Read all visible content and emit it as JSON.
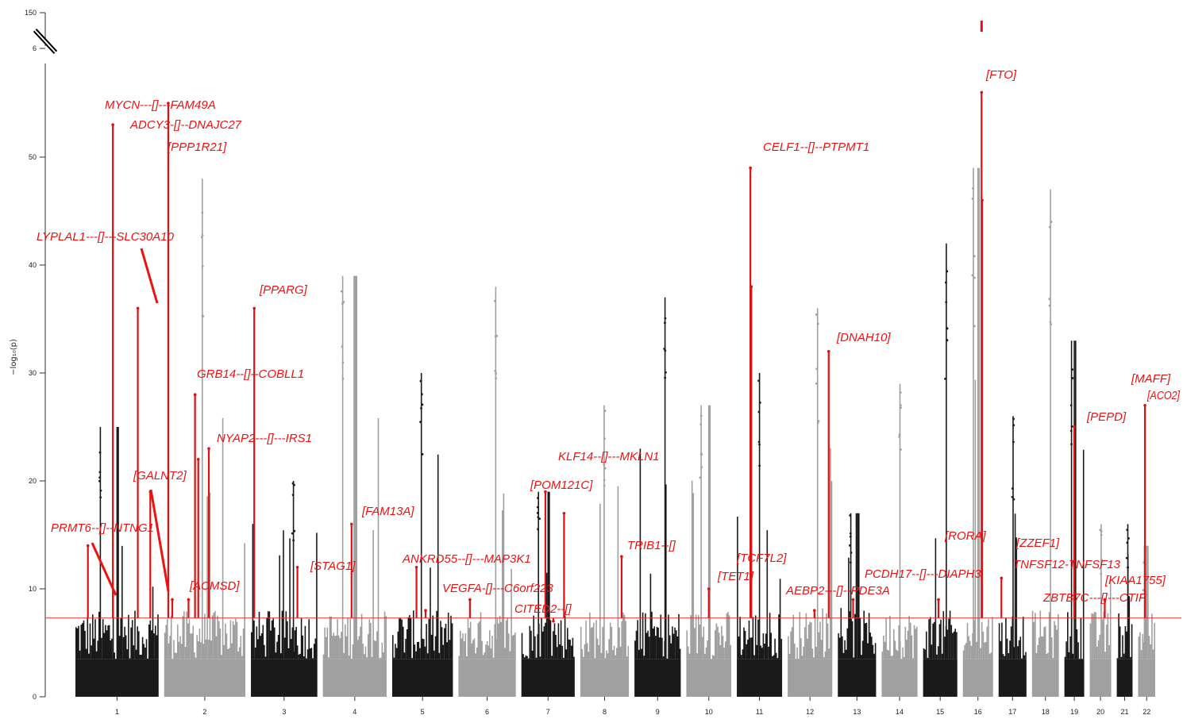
{
  "chart_data": {
    "type": "scatter",
    "title": "",
    "xlabel": "",
    "ylabel": "−log₁₀(p)",
    "ylim": [
      0,
      58
    ],
    "yticks": [
      0,
      10,
      20,
      30,
      40,
      50
    ],
    "ybreak_ticks": [
      "6",
      "150"
    ],
    "significance_threshold": 7.3,
    "colors": {
      "odd": "#1a1a1a",
      "even": "#a0a0a0",
      "highlight": "#dd1111",
      "threshold": "#e03030"
    },
    "chromosomes": [
      {
        "label": "1",
        "peak": 25,
        "highlights": [
          {
            "max": 53,
            "start": 0.45
          },
          {
            "max": 36,
            "start": 0.75
          },
          {
            "max": 14,
            "start": 0.15
          },
          {
            "max": 19,
            "start": 0.9
          }
        ]
      },
      {
        "label": "2",
        "peak": 48,
        "highlights": [
          {
            "max": 55,
            "start": 0.05
          },
          {
            "max": 28,
            "start": 0.38
          },
          {
            "max": 9,
            "start": 0.3
          },
          {
            "max": 22,
            "start": 0.42
          },
          {
            "max": 23,
            "start": 0.55
          },
          {
            "max": 9,
            "start": 0.1
          }
        ]
      },
      {
        "label": "3",
        "peak": 20,
        "highlights": [
          {
            "max": 36,
            "start": 0.05
          },
          {
            "max": 12,
            "start": 0.7
          }
        ]
      },
      {
        "label": "4",
        "peak": 39,
        "highlights": [
          {
            "max": 16,
            "start": 0.45
          }
        ]
      },
      {
        "label": "5",
        "peak": 30,
        "highlights": [
          {
            "max": 12,
            "start": 0.4
          },
          {
            "max": 8,
            "start": 0.55
          }
        ]
      },
      {
        "label": "6",
        "peak": 38,
        "highlights": [
          {
            "max": 9,
            "start": 0.2
          }
        ]
      },
      {
        "label": "7",
        "peak": 19,
        "highlights": [
          {
            "max": 19,
            "start": 0.45
          },
          {
            "max": 17,
            "start": 0.8
          },
          {
            "max": 7,
            "start": 0.6
          }
        ]
      },
      {
        "label": "8",
        "peak": 27,
        "highlights": [
          {
            "max": 13,
            "start": 0.85
          }
        ]
      },
      {
        "label": "9",
        "peak": 37,
        "highlights": []
      },
      {
        "label": "10",
        "peak": 27,
        "highlights": [
          {
            "max": 10,
            "start": 0.5
          }
        ]
      },
      {
        "label": "11",
        "peak": 30,
        "highlights": [
          {
            "max": 49,
            "start": 0.3
          },
          {
            "max": 38,
            "start": 0.32
          }
        ]
      },
      {
        "label": "12",
        "peak": 36,
        "highlights": [
          {
            "max": 8,
            "start": 0.6
          },
          {
            "max": 32,
            "start": 0.92
          }
        ]
      },
      {
        "label": "13",
        "peak": 17,
        "highlights": [
          {
            "max": 9,
            "start": 0.4
          }
        ]
      },
      {
        "label": "14",
        "peak": 29,
        "highlights": []
      },
      {
        "label": "15",
        "peak": 42,
        "highlights": [
          {
            "max": 9,
            "start": 0.45
          }
        ]
      },
      {
        "label": "16",
        "peak": 49,
        "highlights": [
          {
            "max": 56,
            "start": 0.62
          },
          {
            "max": 46,
            "start": 0.64
          }
        ]
      },
      {
        "label": "17",
        "peak": 26,
        "highlights": [
          {
            "max": 11,
            "start": 0.1
          }
        ]
      },
      {
        "label": "18",
        "peak": 47,
        "highlights": []
      },
      {
        "label": "19",
        "peak": 33,
        "highlights": [
          {
            "max": 25,
            "start": 0.5
          }
        ]
      },
      {
        "label": "20",
        "peak": 16,
        "highlights": [
          {
            "max": 9,
            "start": 0.7
          }
        ]
      },
      {
        "label": "21",
        "peak": 16,
        "highlights": []
      },
      {
        "label": "22",
        "peak": 14,
        "highlights": [
          {
            "max": 27,
            "start": 0.4
          }
        ]
      }
    ],
    "annotations": [
      {
        "label": "[FTO]",
        "chr": "16",
        "value": 150
      },
      {
        "label": "MYCN---[]---FAM49A",
        "chr": "2",
        "value": 54
      },
      {
        "label": "ADCY3-[]--DNAJC27",
        "chr": "2",
        "value": 52
      },
      {
        "label": "[PPP1R21]",
        "chr": "2",
        "value": 50
      },
      {
        "label": "CELF1--[]--PTPMT1",
        "chr": "11",
        "value": 49
      },
      {
        "label": "LYPLAL1---[]---SLC30A10",
        "chr": "1",
        "value": 36
      },
      {
        "label": "[PPARG]",
        "chr": "3",
        "value": 36
      },
      {
        "label": "[DNAH10]",
        "chr": "12",
        "value": 32
      },
      {
        "label": "GRB14--[]--COBLL1",
        "chr": "2",
        "value": 29
      },
      {
        "label": "[MAFF]",
        "chr": "22",
        "value": 27
      },
      {
        "label": "[ACO2]",
        "chr": "22",
        "value": 26
      },
      {
        "label": "[PEPD]",
        "chr": "19",
        "value": 25
      },
      {
        "label": "NYAP2---[]---IRS1",
        "chr": "2",
        "value": 22
      },
      {
        "label": "KLF14--[]---MKLN1",
        "chr": "7",
        "value": 17
      },
      {
        "label": "[GALNT2]",
        "chr": "1",
        "value": 19
      },
      {
        "label": "[POM121C]",
        "chr": "7",
        "value": 19
      },
      {
        "label": "[FAM13A]",
        "chr": "4",
        "value": 16
      },
      {
        "label": "PRMT6--[]--NTNG1",
        "chr": "1",
        "value": 14
      },
      {
        "label": "[RORA]",
        "chr": "15",
        "value": 9
      },
      {
        "label": "[ZZEF1]",
        "chr": "17",
        "value": 11
      },
      {
        "label": "TRIB1--[]",
        "chr": "8",
        "value": 13
      },
      {
        "label": "ANKRD55--[]---MAP3K1",
        "chr": "5",
        "value": 12
      },
      {
        "label": "[TCF7L2]",
        "chr": "10",
        "value": 10
      },
      {
        "label": "[STAG1]",
        "chr": "3",
        "value": 12
      },
      {
        "label": "TNFSF12-TNFSF13",
        "chr": "17",
        "value": 11
      },
      {
        "label": "[TET1]",
        "chr": "10",
        "value": 10
      },
      {
        "label": "[KIAA1755]",
        "chr": "20",
        "value": 9
      },
      {
        "label": "[ACMSD]",
        "chr": "2",
        "value": 9
      },
      {
        "label": "PCDH17--[]---DIAPH3",
        "chr": "13",
        "value": 9
      },
      {
        "label": "VEGFA-[]---C6orf223",
        "chr": "6",
        "value": 9
      },
      {
        "label": "AEBP2---[]--PDE3A",
        "chr": "12",
        "value": 8
      },
      {
        "label": "ZBTB7C---[]---CTIF",
        "chr": "18",
        "value": 8
      },
      {
        "label": "CITED2--[]",
        "chr": "6",
        "value": 7
      }
    ]
  }
}
